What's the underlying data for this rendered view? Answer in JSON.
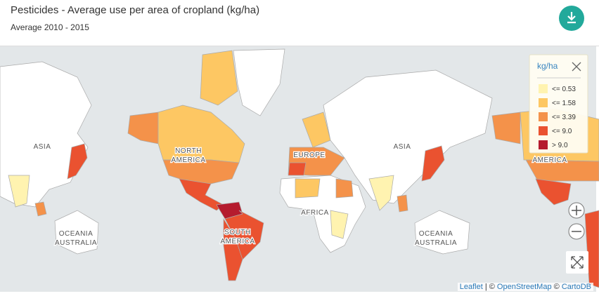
{
  "header": {
    "title": "Pesticides - Average use per area of cropland (kg/ha)",
    "subtitle": "Average 2010 - 2015"
  },
  "legend": {
    "title": "kg/ha",
    "items": [
      {
        "label": "<= 0.53",
        "color": "#fff3b0"
      },
      {
        "label": "<= 1.58",
        "color": "#fdc763"
      },
      {
        "label": "<= 3.39",
        "color": "#f4924a"
      },
      {
        "label": "<= 9.0",
        "color": "#ea5230"
      },
      {
        "label": "> 9.0",
        "color": "#b51b2e"
      }
    ]
  },
  "map": {
    "labels": [
      "ASIA",
      "NORTH",
      "AMERICA",
      "EUROPE",
      "AFRICA",
      "SOUTH",
      "OCEANIA",
      "AUSTRALIA"
    ]
  },
  "attribution": {
    "leaflet": "Leaflet",
    "separator": "| ©",
    "osm": "OpenStreetMap",
    "and": "©",
    "carto": "CartoDB"
  }
}
